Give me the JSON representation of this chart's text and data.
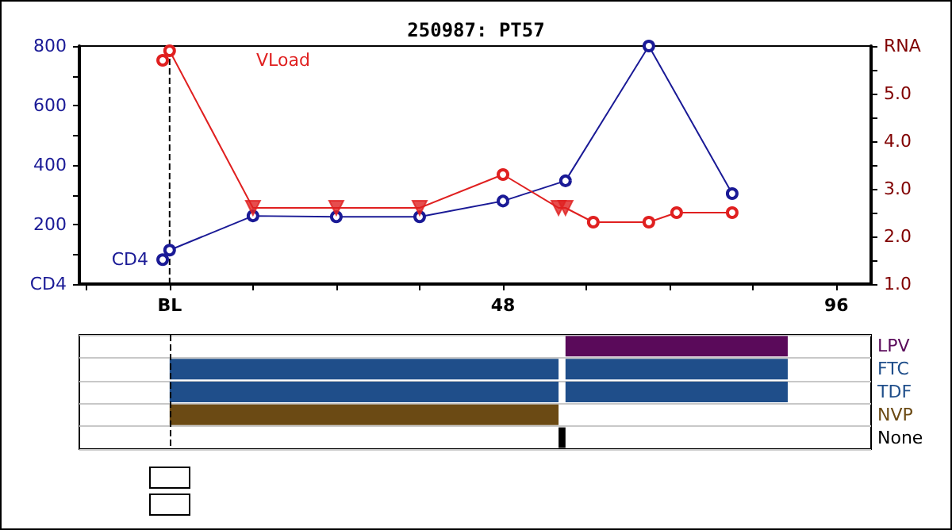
{
  "chart_data": [
    {
      "type": "line",
      "title": "250987: PT57",
      "xlim": [
        -13,
        101
      ],
      "xticks": [
        {
          "value": -12,
          "label": null
        },
        {
          "value": 0,
          "label": "BL"
        },
        {
          "value": 12,
          "label": null
        },
        {
          "value": 24,
          "label": null
        },
        {
          "value": 36,
          "label": null
        },
        {
          "value": 48,
          "label": "48"
        },
        {
          "value": 60,
          "label": null
        },
        {
          "value": 72,
          "label": null
        },
        {
          "value": 84,
          "label": null
        },
        {
          "value": 96,
          "label": "96"
        }
      ],
      "ylim": [
        0,
        800
      ],
      "yticks": [
        {
          "value": 0,
          "label": "CD4"
        },
        {
          "value": 100,
          "label": null
        },
        200,
        {
          "value": 300,
          "label": null
        },
        400,
        {
          "value": 500,
          "label": null
        },
        600,
        {
          "value": 700,
          "label": null
        },
        800
      ],
      "y2lim": [
        1,
        6
      ],
      "y2ticks": [
        {
          "value": 1,
          "label": "1.0"
        },
        {
          "value": 1.5,
          "label": null
        },
        {
          "value": 2,
          "label": "2.0"
        },
        {
          "value": 2.5,
          "label": null
        },
        {
          "value": 3,
          "label": "3.0"
        },
        {
          "value": 3.5,
          "label": null
        },
        {
          "value": 4,
          "label": "4.0"
        },
        {
          "value": 4.5,
          "label": null
        },
        {
          "value": 5,
          "label": "5.0"
        },
        {
          "value": 5.5,
          "label": null
        },
        {
          "value": 6,
          "label": "RNA"
        }
      ],
      "marker": "circle",
      "series": [
        {
          "name": "CD4",
          "color": "#1a1a96",
          "x": [
            -1,
            0,
            12,
            24,
            36,
            48,
            57,
            69,
            81
          ],
          "values": [
            82,
            114,
            229,
            226,
            226,
            279,
            347,
            800,
            304
          ]
        },
        {
          "name": "VLoad",
          "color": "#e02020",
          "axis": "y2",
          "x": [
            -1,
            0,
            12,
            24,
            36,
            48,
            56,
            57,
            61,
            69,
            73,
            81
          ],
          "values": [
            5.7,
            5.9,
            2.6,
            2.6,
            2.6,
            3.3,
            2.6,
            2.6,
            2.3,
            2.3,
            2.5,
            2.5
          ]
        },
        {
          "type": "scatter",
          "marker": "triangle",
          "color": "#e02020",
          "axis": "y2",
          "x": [
            12,
            24,
            36,
            56,
            57
          ],
          "values": [
            2.6,
            2.6,
            2.6,
            2.6,
            2.6
          ]
        }
      ],
      "ref_lines": [
        {
          "axis": "x",
          "value": 0,
          "line_style": "dashed",
          "color": "#000000"
        }
      ]
    },
    {
      "type": "bar",
      "orientation": "horizontal",
      "categories": [
        "LPV",
        "FTC",
        "TDF",
        "NVP",
        "None"
      ],
      "xlim": [
        -13,
        101
      ],
      "tick_labels": "y",
      "grid": "y",
      "series": [
        {
          "colors": [
            null,
            "#1f4e8a",
            "#1f4e8a",
            "#6b4a14",
            "#000000"
          ],
          "base": [
            null,
            0,
            0,
            0,
            56
          ],
          "values": [
            null,
            56,
            56,
            56,
            1
          ]
        },
        {
          "colors": [
            "#5a0a5a",
            "#1f4e8a",
            "#1f4e8a",
            null,
            null
          ],
          "base": [
            57,
            57,
            57,
            null,
            null
          ],
          "values": [
            32,
            32,
            32,
            null,
            null
          ]
        }
      ],
      "ref_lines": [
        {
          "axis": "x",
          "value": 0,
          "line_style": "dashed",
          "color": "#000000"
        }
      ]
    }
  ]
}
